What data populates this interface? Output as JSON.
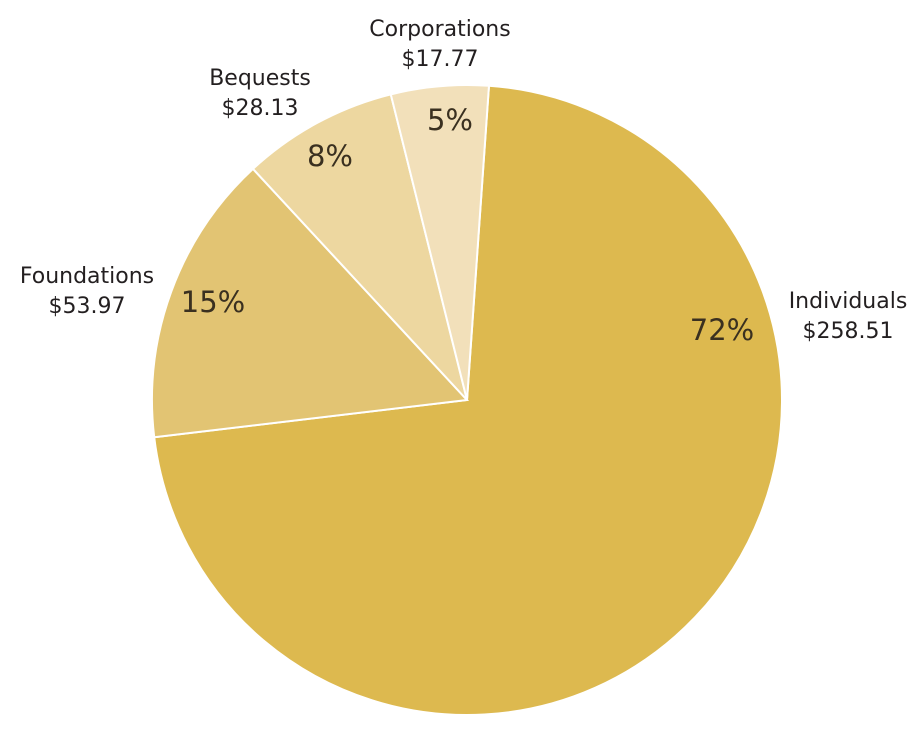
{
  "chart_data": {
    "type": "pie",
    "title": "",
    "start_angle_deg": 4,
    "direction": "clockwise",
    "slices": [
      {
        "label": "Individuals",
        "value_label": "$258.51",
        "value": 258.51,
        "percent_label": "72%",
        "percent": 72,
        "color": "#DDB94F"
      },
      {
        "label": "Foundations",
        "value_label": "$53.97",
        "value": 53.97,
        "percent_label": "15%",
        "percent": 15,
        "color": "#E2C473"
      },
      {
        "label": "Bequests",
        "value_label": "$28.13",
        "value": 28.13,
        "percent_label": "8%",
        "percent": 8,
        "color": "#EDD7A0"
      },
      {
        "label": "Corporations",
        "value_label": "$17.77",
        "value": 17.77,
        "percent_label": "5%",
        "percent": 5,
        "color": "#F2E0BA"
      }
    ]
  }
}
